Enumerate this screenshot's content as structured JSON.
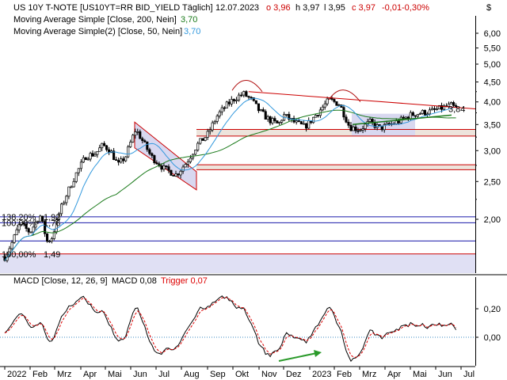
{
  "header": {
    "instrument": "US 10Y T-NOTE [US10YT=RR BID_YIELD Täglich]",
    "date": "12.07.2023",
    "open": "o 3,96",
    "high": "h 3,97",
    "low": "l 3,95",
    "close": "c 3,97",
    "change": "-0,01",
    "change_pct": "-0,30%",
    "currency_badge": "$"
  },
  "legend": {
    "ma200": {
      "label": "Moving Average Simple [Close, 200, Nein]",
      "value": "3,70",
      "color": "#1a7a1a"
    },
    "ma50": {
      "label": "Moving Average Simple(2) [Close, 50, Nein]",
      "value": "3,70",
      "color": "#3399dd"
    },
    "macd": {
      "label": "MACD [Close, 12, 26, 9]",
      "macd_label": "MACD 0,08",
      "trigger_label": "Trigger 0,07",
      "trigger_color": "#dd0000"
    }
  },
  "colors": {
    "up": "#000000",
    "down": "#000000",
    "ma200": "#1a7a1a",
    "ma50": "#3399dd",
    "resistance": "#cc0000",
    "support_blue": "#1a1aaa",
    "arrow": "#2a9a2a",
    "shade": "#d8d8f0",
    "band": "#e8e0d8"
  },
  "chart_data": [
    {
      "type": "candlestick",
      "title": "US 10Y T-NOTE [US10YT=RR BID_YIELD Täglich]",
      "x_labels": [
        "2022",
        "Feb",
        "Mrz",
        "Apr",
        "Mai",
        "Jun",
        "Jul",
        "Aug",
        "Sep",
        "Okt",
        "Nov",
        "Dez",
        "2023",
        "Feb",
        "Mrz",
        "Apr",
        "Mai",
        "Jun",
        "Jul"
      ],
      "y_ticks": [
        "6,00",
        "5,50",
        "5,00",
        "4,50",
        "4,00",
        "3,50",
        "3,00",
        "2,50",
        "2,00"
      ],
      "y_tick_values": [
        6.0,
        5.5,
        5.0,
        4.5,
        4.0,
        3.5,
        3.0,
        2.5,
        2.0
      ],
      "scale": "log",
      "ylim": [
        1.5,
        6.5
      ],
      "last_price_label": "3,84",
      "monthly_closes": {
        "x": [
          "2022-01",
          "2022-02",
          "2022-03",
          "2022-04",
          "2022-05",
          "2022-06",
          "2022-07",
          "2022-08",
          "2022-09",
          "2022-10",
          "2022-11",
          "2022-12",
          "2023-01",
          "2023-02",
          "2023-03",
          "2023-04",
          "2023-05",
          "2023-06",
          "2023-07"
        ],
        "y": [
          1.78,
          1.83,
          2.34,
          2.94,
          2.84,
          3.01,
          2.65,
          3.19,
          3.8,
          4.05,
          3.61,
          3.87,
          3.51,
          3.92,
          3.47,
          3.42,
          3.64,
          3.84,
          3.97
        ]
      },
      "series": [
        {
          "name": "Moving Average Simple [Close, 200, Nein]",
          "last_value": 3.7
        },
        {
          "name": "Moving Average Simple(2) [Close, 50, Nein]",
          "last_value": 3.7
        }
      ],
      "annotations": {
        "horizontal_levels_red": [
          3.4,
          3.27,
          2.76,
          2.68,
          1.63
        ],
        "horizontal_levels_blue": [
          2.03,
          1.96,
          1.76
        ],
        "fib_labels": [
          "138,20%",
          "100,00%",
          "100,00%"
        ],
        "fib_price_labels": [
          "1,92",
          "1,76",
          "1,49"
        ],
        "resistance_line": {
          "from": [
            "2022-10-21",
            4.25
          ],
          "to": [
            "2023-07-12",
            3.84
          ]
        }
      }
    },
    {
      "type": "line",
      "title": "MACD [Close, 12, 26, 9]",
      "y_ticks": [
        "0,20",
        "0,00"
      ],
      "y_tick_values": [
        0.2,
        0.0
      ],
      "ylim": [
        -0.25,
        0.38
      ],
      "series": [
        {
          "name": "MACD",
          "last_value": 0.08,
          "x": [
            "2022-01",
            "2022-02",
            "2022-03",
            "2022-04",
            "2022-05",
            "2022-06",
            "2022-07",
            "2022-08",
            "2022-09",
            "2022-10",
            "2022-11",
            "2022-12",
            "2023-01",
            "2023-02",
            "2023-03",
            "2023-04",
            "2023-05",
            "2023-06",
            "2023-07"
          ],
          "y": [
            0.06,
            0.03,
            0.15,
            0.2,
            0.02,
            0.15,
            -0.06,
            0.05,
            0.24,
            0.16,
            -0.14,
            -0.05,
            -0.09,
            0.14,
            -0.12,
            -0.05,
            0.06,
            0.07,
            0.08
          ]
        },
        {
          "name": "Trigger",
          "last_value": 0.07
        }
      ]
    }
  ]
}
